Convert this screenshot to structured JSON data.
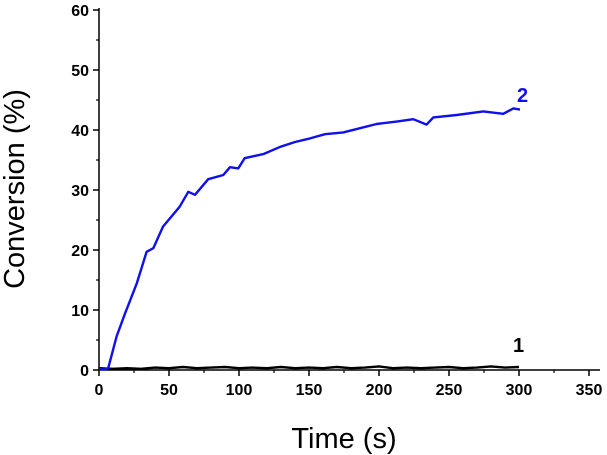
{
  "chart_data": {
    "type": "line",
    "title": "",
    "xlabel": "Time (s)",
    "ylabel": "Conversion (%)",
    "xlim": [
      0,
      350
    ],
    "ylim": [
      0,
      60
    ],
    "xticks": [
      0,
      50,
      100,
      150,
      200,
      250,
      300,
      350
    ],
    "yticks": [
      0,
      10,
      20,
      30,
      40,
      50,
      60
    ],
    "grid": false,
    "series": [
      {
        "name": "1",
        "color": "#000000",
        "x": [
          0,
          10,
          20,
          30,
          40,
          50,
          60,
          70,
          80,
          90,
          100,
          110,
          120,
          130,
          140,
          150,
          160,
          170,
          180,
          190,
          200,
          210,
          220,
          230,
          240,
          250,
          260,
          270,
          280,
          290,
          300
        ],
        "y": [
          0.3,
          0.2,
          0.3,
          0.2,
          0.4,
          0.3,
          0.5,
          0.3,
          0.4,
          0.5,
          0.3,
          0.4,
          0.3,
          0.5,
          0.3,
          0.4,
          0.3,
          0.5,
          0.3,
          0.4,
          0.6,
          0.3,
          0.4,
          0.3,
          0.4,
          0.5,
          0.3,
          0.4,
          0.6,
          0.4,
          0.5
        ]
      },
      {
        "name": "2",
        "color": "#1010ee",
        "x": [
          0,
          4,
          6.6,
          12.6,
          18.6,
          26.9,
          34,
          38.8,
          45.7,
          57.6,
          63.8,
          68.6,
          78,
          88.8,
          93.6,
          99.5,
          104,
          117.6,
          129.5,
          140,
          150.7,
          161.4,
          174.5,
          186.4,
          198.3,
          212.6,
          224.5,
          234,
          238.8,
          255.5,
          274.5,
          288.8,
          296,
          300.7
        ],
        "y": [
          0.1,
          0.1,
          0.3,
          5.6,
          9.4,
          14.4,
          19.7,
          20.3,
          23.9,
          27.2,
          29.7,
          29.2,
          31.8,
          32.5,
          33.8,
          33.6,
          35.3,
          36.0,
          37.2,
          38.0,
          38.6,
          39.3,
          39.6,
          40.3,
          41.0,
          41.4,
          41.8,
          40.9,
          42.1,
          42.5,
          43.1,
          42.7,
          43.6,
          43.4
        ]
      }
    ]
  }
}
